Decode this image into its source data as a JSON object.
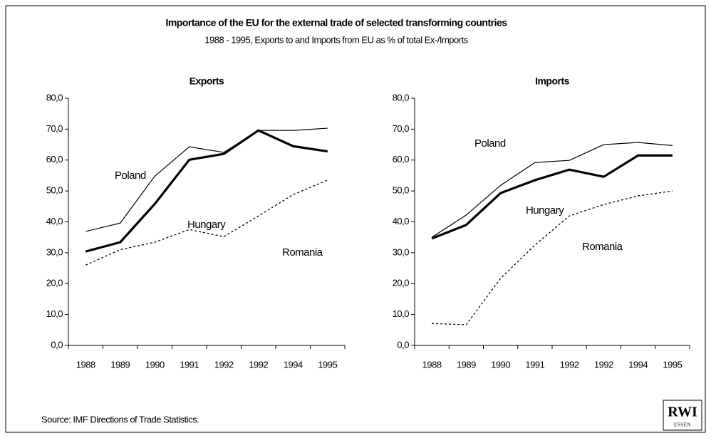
{
  "header": {
    "title": "Importance of the EU for the external trade of selected transforming countries",
    "subtitle": "1988 - 1995, Exports to and Imports from EU as % of total Ex-/Imports"
  },
  "chart_data": [
    {
      "type": "line",
      "title": "Exports",
      "categories": [
        "1988",
        "1989",
        "1990",
        "1991",
        "1992",
        "1992",
        "1994",
        "1995"
      ],
      "ylim": [
        0,
        80
      ],
      "yticks": [
        {
          "value": 0,
          "label": "0,0"
        },
        {
          "value": 10,
          "label": "10,0"
        },
        {
          "value": 20,
          "label": "20,0"
        },
        {
          "value": 30,
          "label": "30,0"
        },
        {
          "value": 40,
          "label": "40,0"
        },
        {
          "value": 50,
          "label": "50,0"
        },
        {
          "value": 60,
          "label": "60,0"
        },
        {
          "value": 70,
          "label": "70,0"
        },
        {
          "value": 80,
          "label": "80,0"
        }
      ],
      "grid": false,
      "series": [
        {
          "name": "Poland",
          "color": "#000000",
          "line_style": "thin",
          "values": [
            36.9,
            39.6,
            54.8,
            64.3,
            62.5,
            69.6,
            69.6,
            70.3
          ]
        },
        {
          "name": "Hungary",
          "color": "#000000",
          "line_style": "bold",
          "values": [
            30.4,
            33.4,
            45.8,
            60.1,
            62.0,
            69.6,
            64.5,
            62.8
          ]
        },
        {
          "name": "Romania",
          "color": "#000000",
          "line_style": "dotted",
          "values": [
            26.0,
            31.0,
            33.4,
            37.5,
            35.2,
            41.9,
            48.8,
            53.5
          ]
        }
      ]
    },
    {
      "type": "line",
      "title": "Imports",
      "categories": [
        "1988",
        "1989",
        "1990",
        "1991",
        "1992",
        "1992",
        "1994",
        "1995"
      ],
      "ylim": [
        0,
        80
      ],
      "yticks": [
        {
          "value": 0,
          "label": "0,0"
        },
        {
          "value": 10,
          "label": "10,0"
        },
        {
          "value": 20,
          "label": "20,0"
        },
        {
          "value": 30,
          "label": "30,0"
        },
        {
          "value": 40,
          "label": "40,0"
        },
        {
          "value": 50,
          "label": "50,0"
        },
        {
          "value": 60,
          "label": "60,0"
        },
        {
          "value": 70,
          "label": "70,0"
        },
        {
          "value": 80,
          "label": "80,0"
        }
      ],
      "grid": false,
      "series": [
        {
          "name": "Poland",
          "color": "#000000",
          "line_style": "thin",
          "values": [
            35.0,
            42.2,
            51.8,
            59.2,
            59.9,
            65.0,
            65.7,
            64.7
          ]
        },
        {
          "name": "Hungary",
          "color": "#000000",
          "line_style": "bold",
          "values": [
            34.6,
            39.0,
            49.3,
            53.5,
            56.9,
            54.6,
            61.5,
            61.5
          ]
        },
        {
          "name": "Romania",
          "color": "#000000",
          "line_style": "dotted",
          "values": [
            7.1,
            6.7,
            21.7,
            32.5,
            41.9,
            45.6,
            48.4,
            50.0
          ]
        }
      ]
    }
  ],
  "footer": {
    "source": "Source: IMF Directions of Trade Statistics.",
    "logo": {
      "name": "RWI",
      "city": "ESSEN"
    }
  }
}
